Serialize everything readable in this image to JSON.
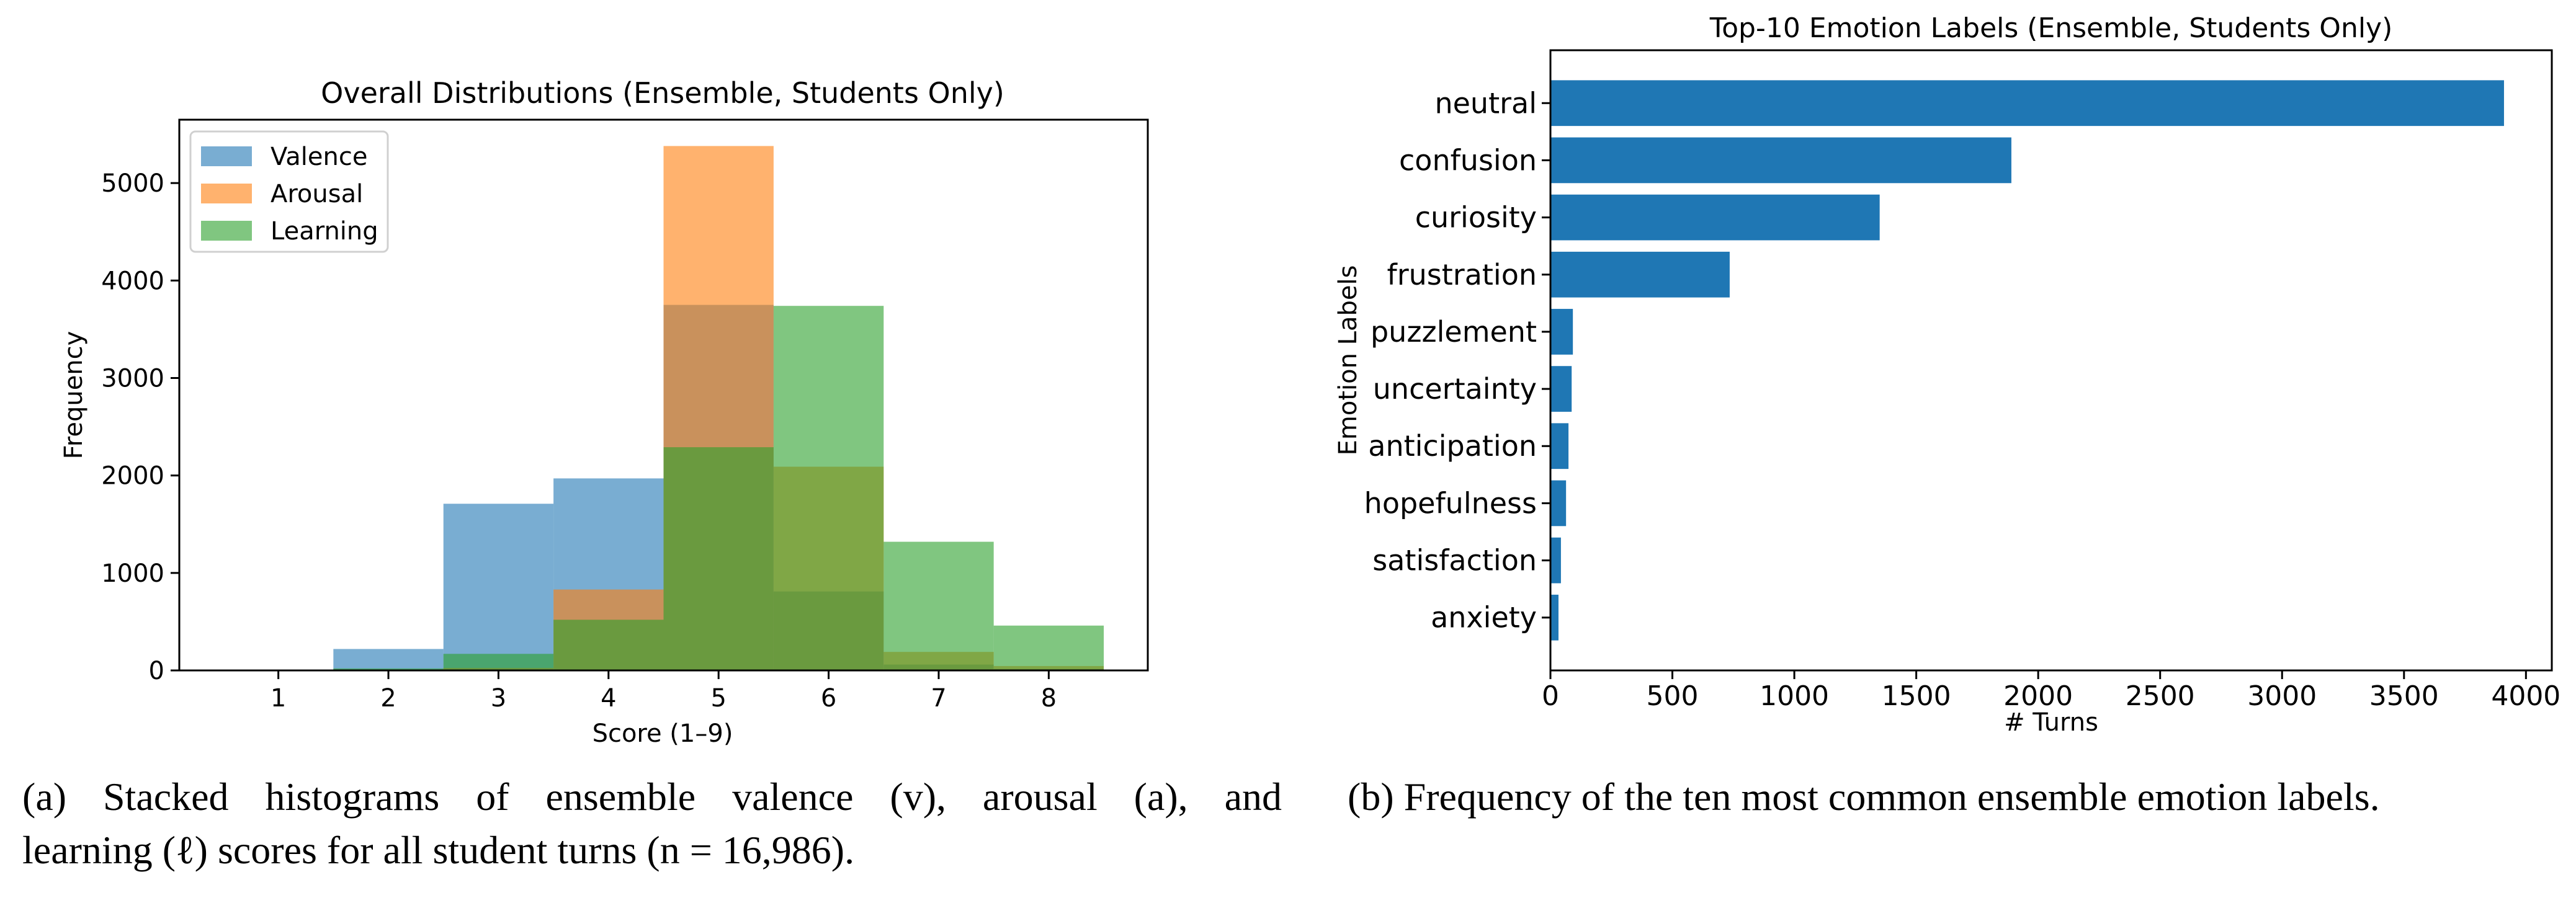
{
  "chart_data": [
    {
      "type": "bar",
      "subtype": "overlapping-histogram",
      "title": "Overall Distributions (Ensemble, Students Only)",
      "xlabel": "Score (1–9)",
      "ylabel": "Frequency",
      "xlim": [
        0.1,
        8.9
      ],
      "ylim": [
        0,
        5650
      ],
      "xticks": [
        1,
        2,
        3,
        4,
        5,
        6,
        7,
        8
      ],
      "yticks": [
        0,
        1000,
        2000,
        3000,
        4000,
        5000
      ],
      "bin_edges": [
        1.5,
        2.5,
        3.5,
        4.5,
        5.5,
        6.5,
        7.5,
        8.5
      ],
      "bin_centers": [
        2,
        3,
        4,
        5,
        6,
        7,
        8
      ],
      "grid": false,
      "legend_position": "top-left",
      "alpha": 0.6,
      "series": [
        {
          "name": "Valence",
          "color": "#1f77b4",
          "values": [
            220,
            1710,
            1970,
            3750,
            810,
            60,
            15
          ]
        },
        {
          "name": "Arousal",
          "color": "#ff7f0e",
          "values": [
            10,
            25,
            830,
            5380,
            2090,
            190,
            45
          ]
        },
        {
          "name": "Learning",
          "color": "#2ca02c",
          "values": [
            20,
            170,
            520,
            2290,
            3740,
            1320,
            460
          ]
        }
      ]
    },
    {
      "type": "bar",
      "orientation": "horizontal",
      "title": "Top-10 Emotion Labels (Ensemble, Students Only)",
      "xlabel": "# Turns",
      "ylabel": "Emotion Labels",
      "xlim": [
        0,
        4106
      ],
      "xticks": [
        0,
        500,
        1000,
        1500,
        2000,
        2500,
        3000,
        3500,
        4000
      ],
      "grid": false,
      "color": "#1f77b4",
      "categories": [
        "neutral",
        "confusion",
        "curiosity",
        "frustration",
        "puzzlement",
        "uncertainty",
        "anticipation",
        "hopefulness",
        "satisfaction",
        "anxiety"
      ],
      "values": [
        3910,
        1890,
        1350,
        735,
        92,
        87,
        74,
        64,
        43,
        33
      ]
    }
  ],
  "captions": {
    "a_line1": "(a) Stacked histograms of ensemble valence (v), arousal (a), and",
    "a_line2": "learning (ℓ) scores for all student turns (n = 16,986).",
    "b": "(b) Frequency of the ten most common ensemble emotion labels."
  }
}
